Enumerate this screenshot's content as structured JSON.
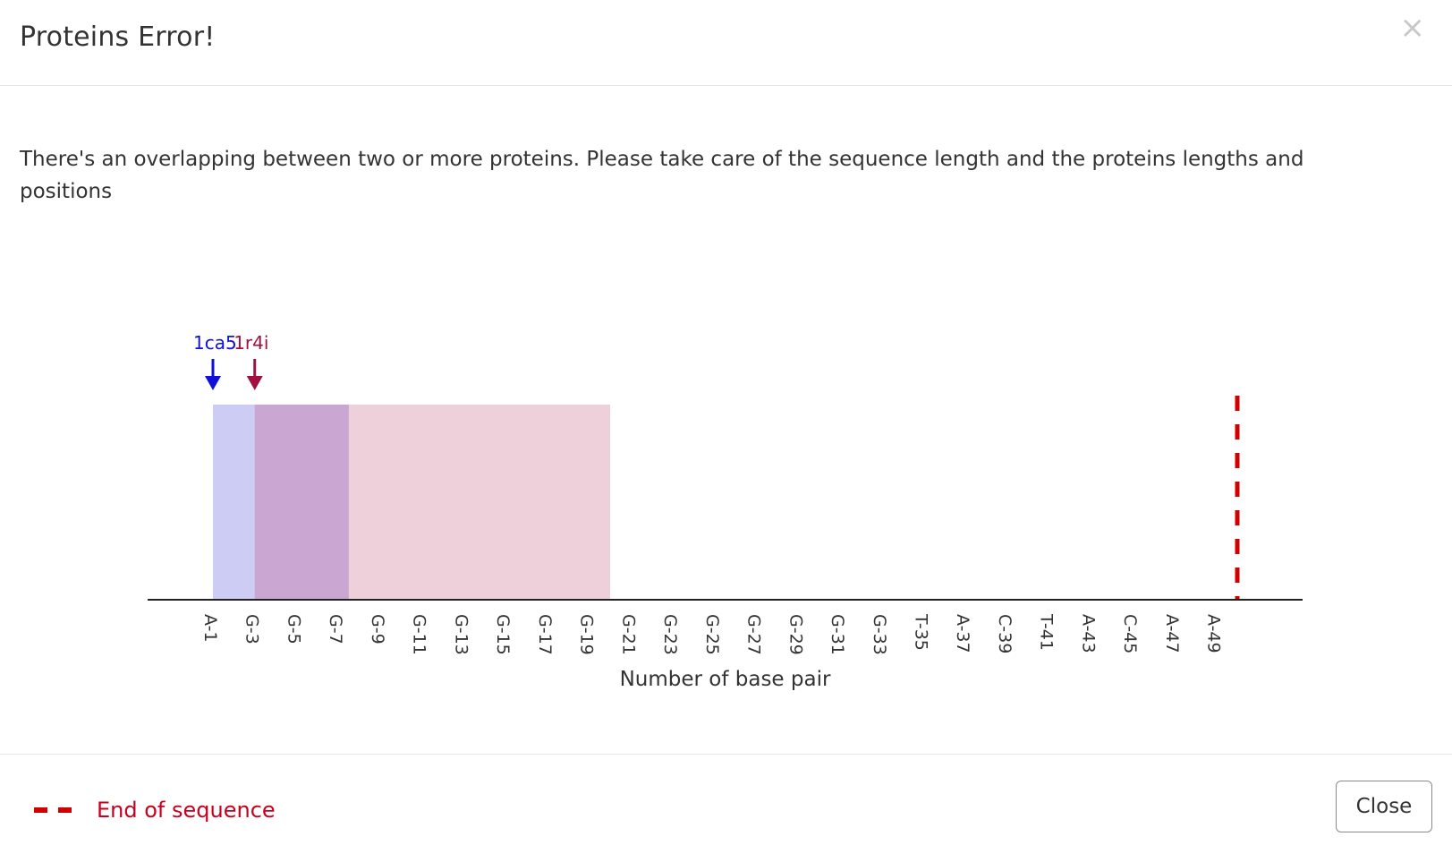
{
  "dialog": {
    "title": "Proteins Error!",
    "close_icon": "×",
    "message": "There's an overlapping between two or more proteins. Please take care of the sequence length and the proteins lengths and positions"
  },
  "chart_data": {
    "type": "bar",
    "xlabel": "Number of base pair",
    "categories": [
      "A-1",
      "G-3",
      "G-5",
      "G-7",
      "G-9",
      "G-11",
      "G-13",
      "G-15",
      "G-17",
      "G-19",
      "G-21",
      "G-23",
      "G-25",
      "G-27",
      "G-29",
      "G-31",
      "G-33",
      "T-35",
      "A-37",
      "C-39",
      "T-41",
      "A-43",
      "C-45",
      "A-47",
      "A-49"
    ],
    "proteins": [
      {
        "name": "1ca5",
        "start": 1,
        "end": 7.5,
        "color": "#1010d8",
        "fill": "#ccccf5"
      },
      {
        "name": "1r4i",
        "start": 3,
        "end": 20,
        "color": "#a01040",
        "fill": "#edd0da"
      }
    ],
    "overlap_fill": "#c9a7d2",
    "end_of_sequence": 50,
    "x_domain": [
      1,
      50
    ],
    "end_marker_color": "#d10000"
  },
  "legend": {
    "label": "End of sequence",
    "color": "#c8001e"
  },
  "footer": {
    "close_label": "Close"
  }
}
